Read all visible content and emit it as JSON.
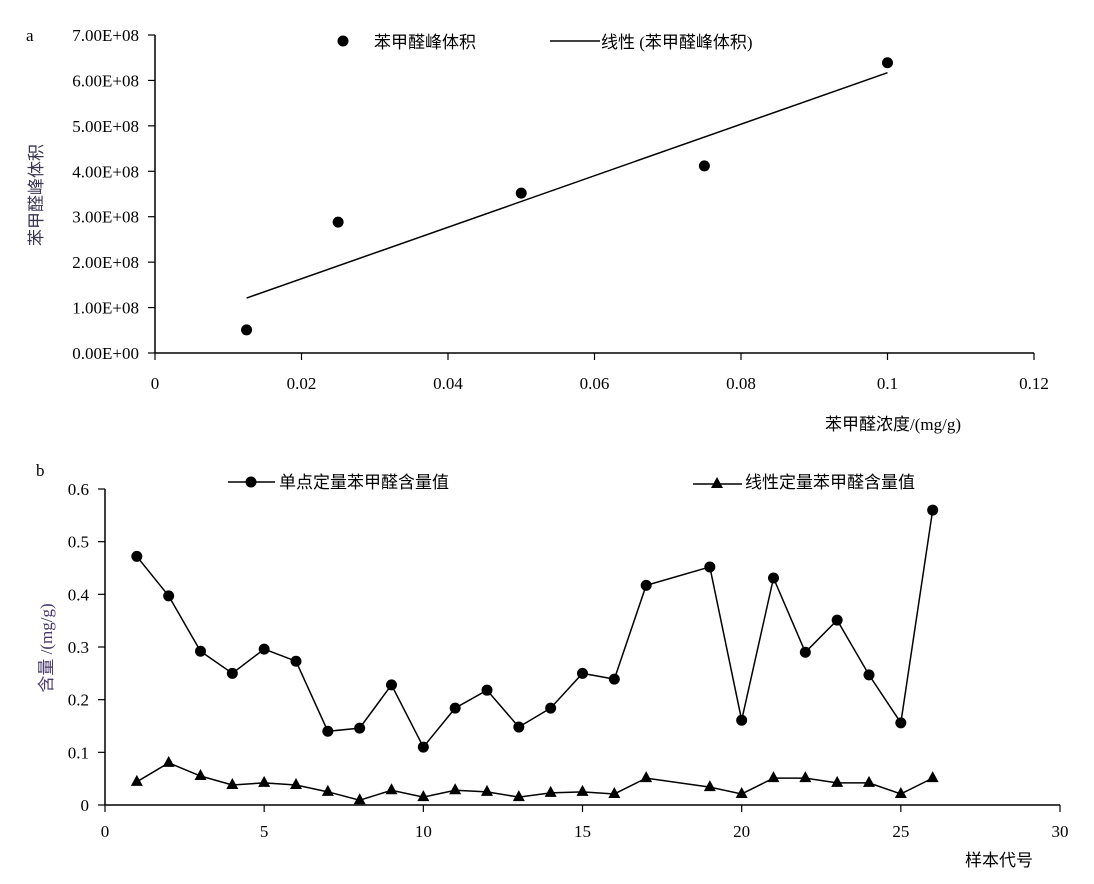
{
  "chart_data": [
    {
      "panel_label": "a",
      "type": "scatter",
      "title": "",
      "xlabel": "苯甲醛浓度/(mg/g)",
      "ylabel": "苯甲醛峰体积",
      "xlim": [
        0,
        0.12
      ],
      "ylim": [
        0,
        700000000
      ],
      "x_ticks": [
        "0",
        "0.02",
        "0.04",
        "0.06",
        "0.08",
        "0.1",
        "0.12"
      ],
      "y_ticks": [
        "0.00E+00",
        "1.00E+08",
        "2.00E+08",
        "3.00E+08",
        "4.00E+08",
        "5.00E+08",
        "6.00E+08",
        "7.00E+08"
      ],
      "grid": false,
      "legend_position": "top",
      "series": [
        {
          "name": "苯甲醛峰体积",
          "kind": "points",
          "x": [
            0.0125,
            0.025,
            0.05,
            0.075,
            0.1
          ],
          "y": [
            51000000,
            288000000,
            352000000,
            412000000,
            639000000
          ]
        },
        {
          "name": "线性 (苯甲醛峰体积)",
          "kind": "trendline",
          "x": [
            0.0125,
            0.1
          ],
          "y": [
            121000000,
            617000000
          ]
        }
      ]
    },
    {
      "panel_label": "b",
      "type": "line",
      "title": "",
      "xlabel": "样本代号",
      "ylabel": "含量 /(mg/g)",
      "xlim": [
        0,
        30
      ],
      "ylim": [
        0,
        0.6
      ],
      "x_ticks": [
        "0",
        "5",
        "10",
        "15",
        "20",
        "25",
        "30"
      ],
      "y_ticks": [
        "0",
        "0.1",
        "0.2",
        "0.3",
        "0.4",
        "0.5",
        "0.6"
      ],
      "grid": false,
      "legend_position": "top",
      "x": [
        1,
        2,
        3,
        4,
        5,
        6,
        7,
        8,
        9,
        10,
        11,
        12,
        13,
        14,
        15,
        16,
        17,
        19,
        20,
        21,
        22,
        23,
        24,
        25,
        26
      ],
      "series": [
        {
          "name": "单点定量苯甲醛含量值",
          "marker": "circle",
          "values": [
            0.472,
            0.397,
            0.292,
            0.25,
            0.296,
            0.273,
            0.14,
            0.146,
            0.228,
            0.11,
            0.184,
            0.218,
            0.148,
            0.184,
            0.25,
            0.239,
            0.417,
            0.452,
            0.161,
            0.431,
            0.29,
            0.351,
            0.247,
            0.156,
            0.56
          ]
        },
        {
          "name": "线性定量苯甲醛含量值",
          "marker": "triangle",
          "values": [
            0.044,
            0.08,
            0.055,
            0.038,
            0.042,
            0.038,
            0.025,
            0.009,
            0.028,
            0.015,
            0.028,
            0.025,
            0.015,
            0.023,
            0.025,
            0.021,
            0.051,
            0.034,
            0.021,
            0.051,
            0.051,
            0.042,
            0.042,
            0.021,
            0.051
          ]
        }
      ]
    }
  ]
}
